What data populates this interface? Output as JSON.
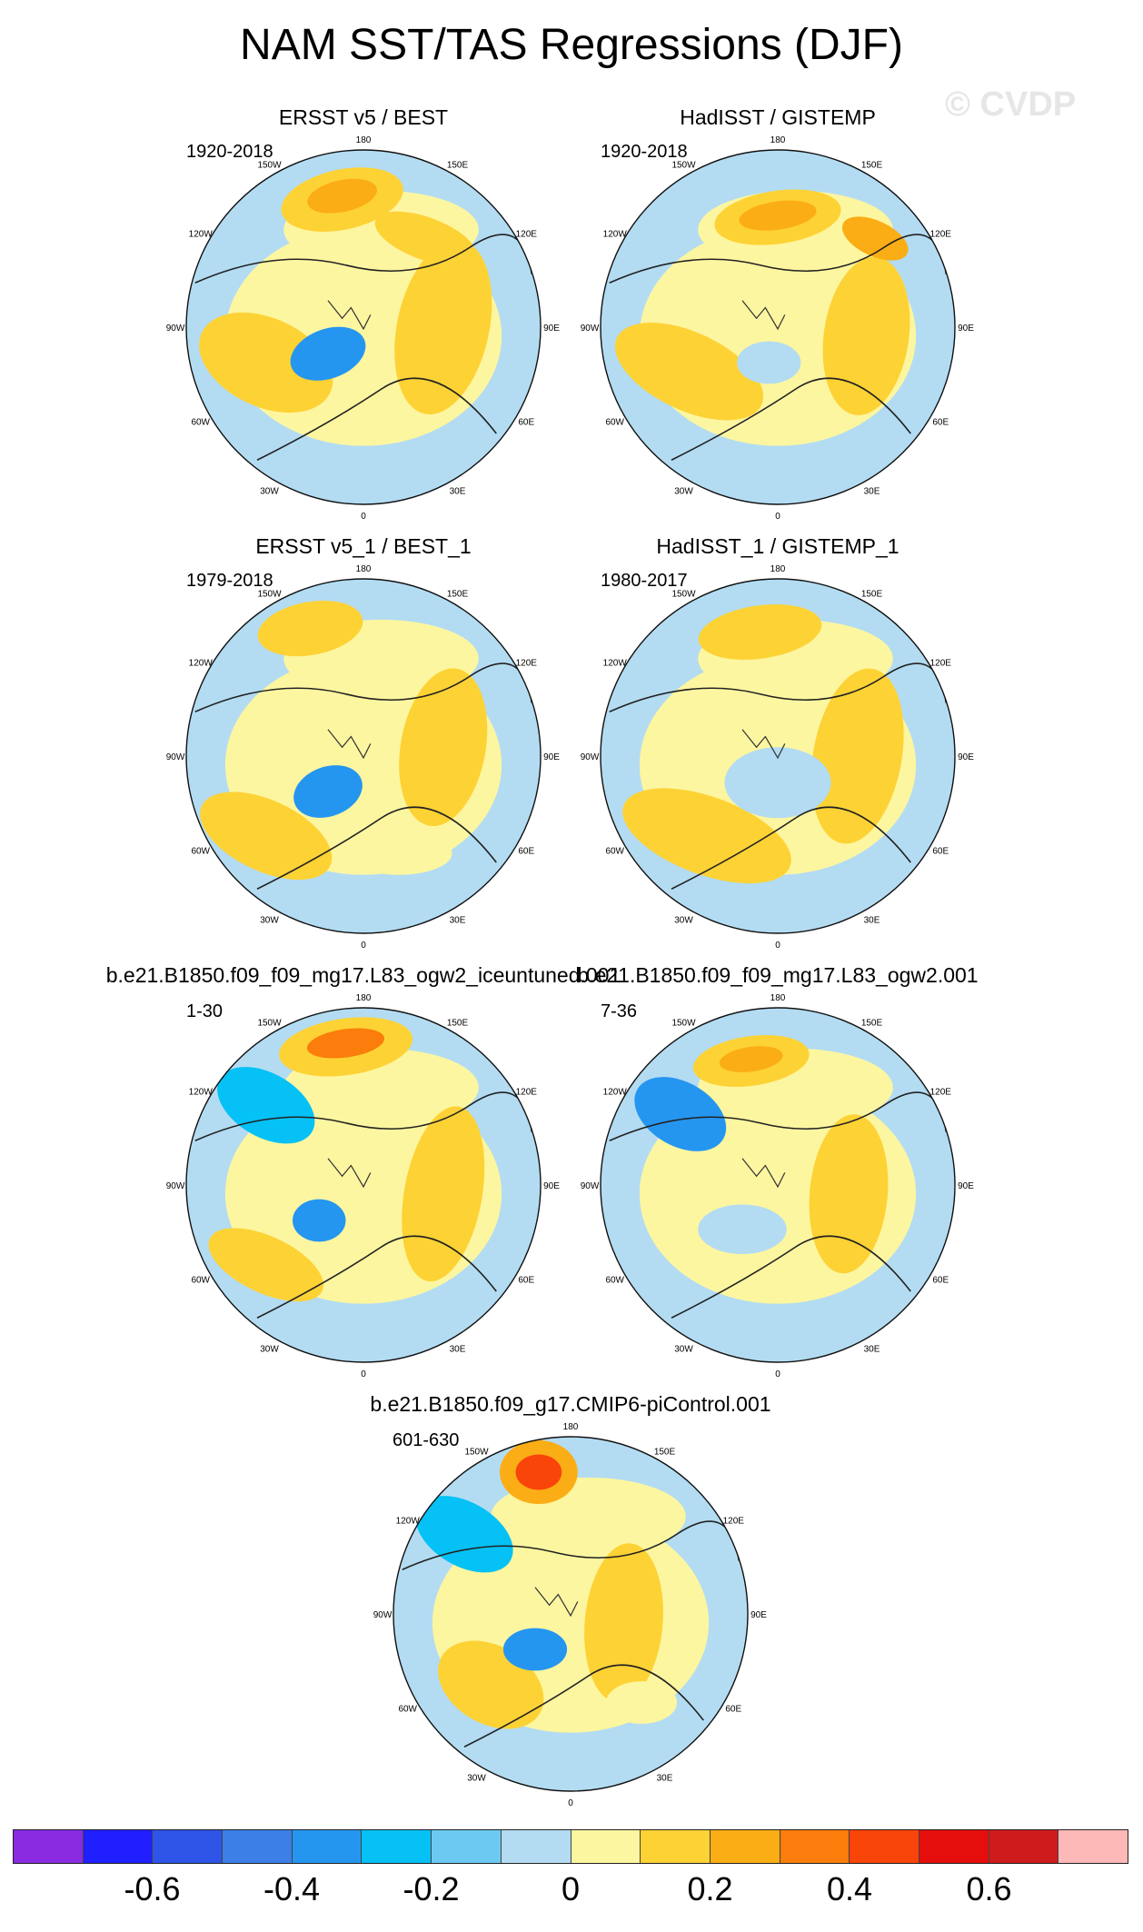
{
  "title": "NAM SST/TAS Regressions (DJF)",
  "watermark": "© CVDP",
  "lon_labels": [
    "180",
    "150E",
    "120E",
    "90E",
    "60E",
    "30E",
    "0",
    "30W",
    "60W",
    "90W",
    "120W",
    "150W"
  ],
  "panels": [
    {
      "title": "ERSST v5 / BEST",
      "period": "1920-2018"
    },
    {
      "title": "HadISST / GISTEMP",
      "period": "1920-2018"
    },
    {
      "title": "ERSST v5_1 / BEST_1",
      "period": "1979-2018"
    },
    {
      "title": "HadISST_1 / GISTEMP_1",
      "period": "1980-2017"
    },
    {
      "title": "b.e21.B1850.f09_f09_mg17.L83_ogw2_iceuntuned.001",
      "period": "1-30"
    },
    {
      "title": "b.e21.B1850.f09_f09_mg17.L83_ogw2.001",
      "period": "7-36"
    },
    {
      "title": "b.e21.B1850.f09_g17.CMIP6-piControl.001",
      "period": "601-630"
    }
  ],
  "colorbar": {
    "colors": [
      "#8a2be2",
      "#1f1fff",
      "#2e55e8",
      "#3c7fe6",
      "#2596f0",
      "#05c1f5",
      "#6ccaf2",
      "#b3dcf2",
      "#fdf6a0",
      "#fdd235",
      "#fbad15",
      "#fb7d0b",
      "#f9440a",
      "#e60d0d",
      "#cf1b1b",
      "#fdb8b8"
    ],
    "tick_labels": [
      "-0.6",
      "-0.4",
      "-0.2",
      "0",
      "0.2",
      "0.4",
      "0.6"
    ]
  }
}
